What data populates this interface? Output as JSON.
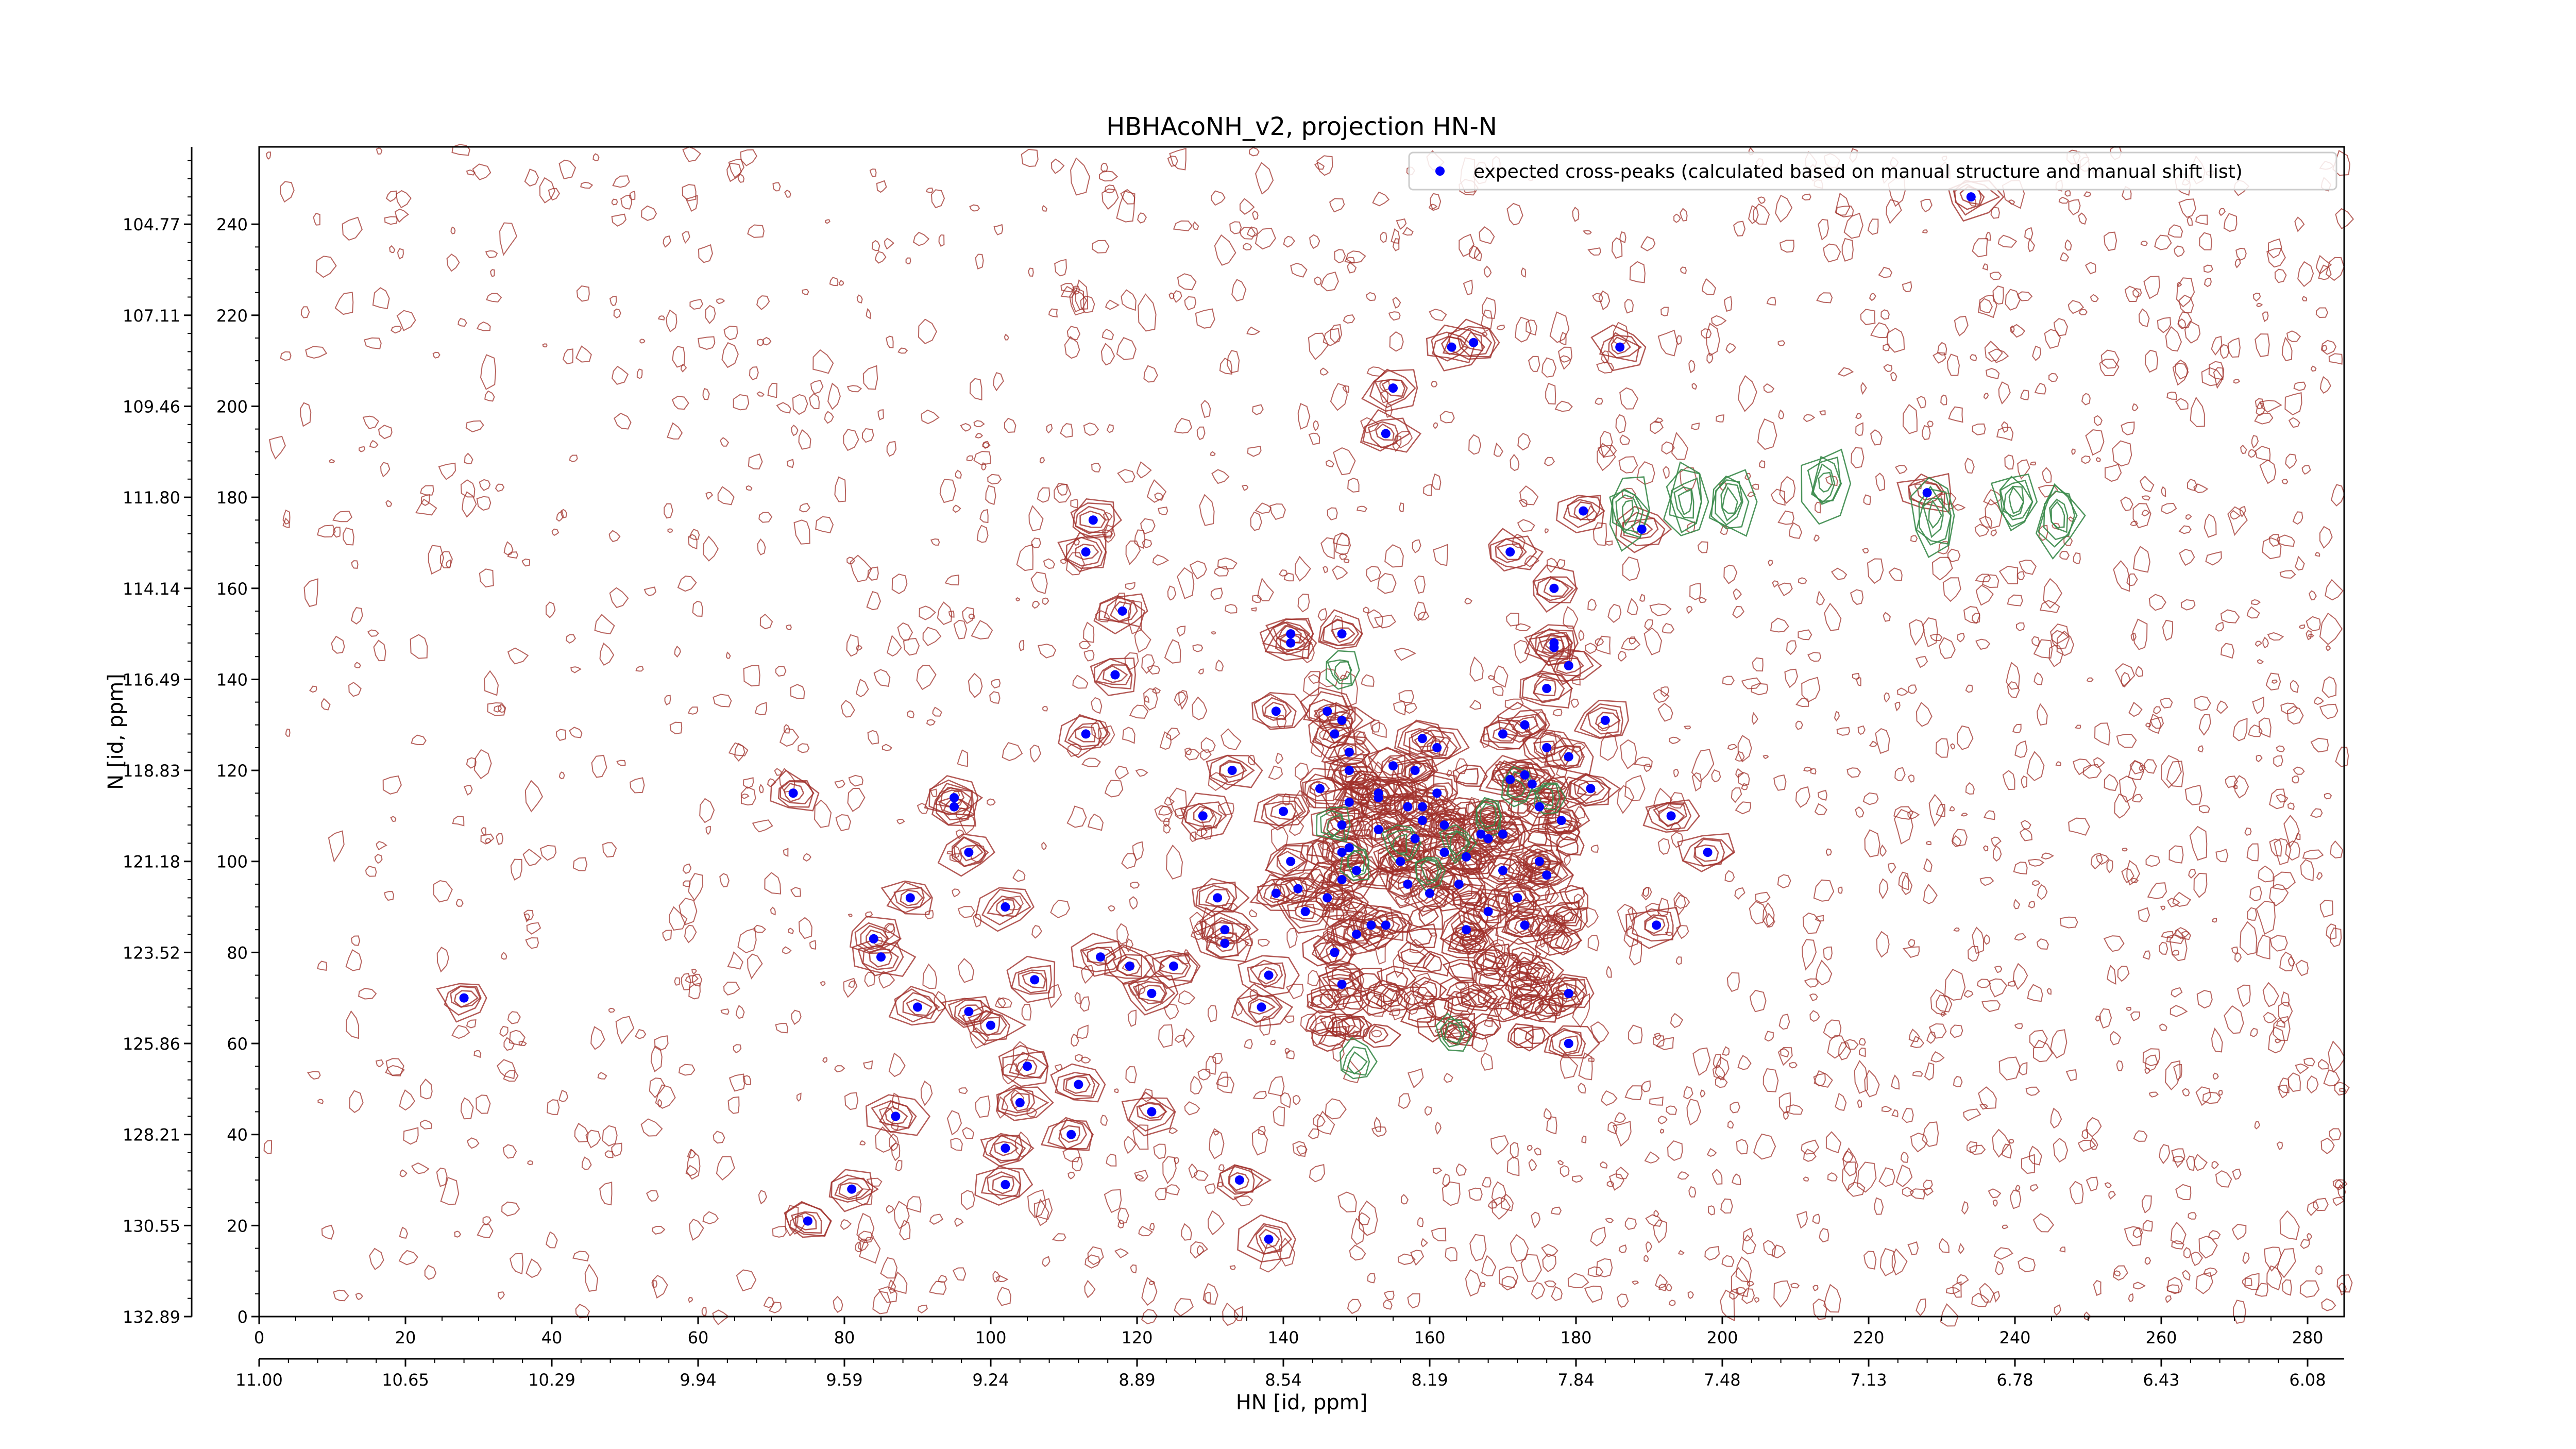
{
  "chart_data": {
    "type": "scatter",
    "title": "HBHAcoNH_v2, projection HN-N",
    "xlabel": "HN [id, ppm]",
    "ylabel": "N [id, ppm]",
    "x_index_ticks": [
      0,
      20,
      40,
      60,
      80,
      100,
      120,
      140,
      160,
      180,
      200,
      220,
      240,
      260,
      280
    ],
    "y_index_ticks": [
      0,
      20,
      40,
      60,
      80,
      100,
      120,
      140,
      160,
      180,
      200,
      220,
      240
    ],
    "x_ppm_ticks": [
      "11.00",
      "10.65",
      "10.29",
      "9.94",
      "9.59",
      "9.24",
      "8.89",
      "8.54",
      "8.19",
      "7.84",
      "7.48",
      "7.13",
      "6.78",
      "6.43",
      "6.08"
    ],
    "y_ppm_ticks": [
      "132.89",
      "130.55",
      "128.21",
      "125.86",
      "123.52",
      "121.18",
      "118.83",
      "116.49",
      "114.14",
      "111.80",
      "109.46",
      "107.11",
      "104.77"
    ],
    "xlim": [
      0,
      285
    ],
    "ylim": [
      0,
      257
    ],
    "legend": {
      "placement": "top-right",
      "label": "expected cross-peaks (calculated based on manual structure and manual shift list)"
    },
    "colors": {
      "marker": "#0000ff",
      "positive_contour": "#a0302a",
      "negative_contour": "#3a8a4a"
    },
    "series": [
      {
        "name": "expected cross-peaks (calculated based on manual structure and manual shift list)",
        "points": [
          [
            28,
            70
          ],
          [
            73,
            115
          ],
          [
            75,
            21
          ],
          [
            81,
            28
          ],
          [
            84,
            83
          ],
          [
            85,
            79
          ],
          [
            87,
            44
          ],
          [
            89,
            92
          ],
          [
            90,
            68
          ],
          [
            95,
            112
          ],
          [
            95,
            114
          ],
          [
            97,
            102
          ],
          [
            97,
            67
          ],
          [
            100,
            64
          ],
          [
            102,
            37
          ],
          [
            102,
            29
          ],
          [
            102,
            90
          ],
          [
            104,
            47
          ],
          [
            105,
            55
          ],
          [
            106,
            74
          ],
          [
            111,
            40
          ],
          [
            112,
            51
          ],
          [
            113,
            128
          ],
          [
            113,
            168
          ],
          [
            114,
            175
          ],
          [
            115,
            79
          ],
          [
            117,
            141
          ],
          [
            118,
            155
          ],
          [
            119,
            77
          ],
          [
            122,
            71
          ],
          [
            122,
            45
          ],
          [
            125,
            77
          ],
          [
            129,
            110
          ],
          [
            131,
            92
          ],
          [
            132,
            85
          ],
          [
            132,
            82
          ],
          [
            133,
            120
          ],
          [
            134,
            30
          ],
          [
            137,
            68
          ],
          [
            138,
            17
          ],
          [
            138,
            75
          ],
          [
            139,
            93
          ],
          [
            139,
            133
          ],
          [
            140,
            111
          ],
          [
            141,
            100
          ],
          [
            141,
            148
          ],
          [
            141,
            150
          ],
          [
            142,
            94
          ],
          [
            143,
            89
          ],
          [
            145,
            116
          ],
          [
            146,
            92
          ],
          [
            146,
            133
          ],
          [
            147,
            128
          ],
          [
            147,
            80
          ],
          [
            148,
            73
          ],
          [
            148,
            96
          ],
          [
            148,
            102
          ],
          [
            148,
            108
          ],
          [
            148,
            150
          ],
          [
            148,
            131
          ],
          [
            149,
            103
          ],
          [
            149,
            113
          ],
          [
            149,
            124
          ],
          [
            149,
            120
          ],
          [
            150,
            84
          ],
          [
            150,
            98
          ],
          [
            152,
            86
          ],
          [
            153,
            115
          ],
          [
            153,
            107
          ],
          [
            153,
            114
          ],
          [
            154,
            194
          ],
          [
            154,
            86
          ],
          [
            155,
            121
          ],
          [
            155,
            204
          ],
          [
            156,
            100
          ],
          [
            157,
            112
          ],
          [
            157,
            95
          ],
          [
            158,
            120
          ],
          [
            158,
            105
          ],
          [
            159,
            112
          ],
          [
            159,
            127
          ],
          [
            159,
            109
          ],
          [
            160,
            93
          ],
          [
            161,
            125
          ],
          [
            161,
            115
          ],
          [
            162,
            102
          ],
          [
            162,
            108
          ],
          [
            163,
            213
          ],
          [
            164,
            95
          ],
          [
            165,
            101
          ],
          [
            165,
            85
          ],
          [
            166,
            214
          ],
          [
            167,
            106
          ],
          [
            168,
            89
          ],
          [
            168,
            105
          ],
          [
            170,
            128
          ],
          [
            170,
            106
          ],
          [
            170,
            98
          ],
          [
            171,
            168
          ],
          [
            171,
            118
          ],
          [
            172,
            92
          ],
          [
            173,
            130
          ],
          [
            173,
            86
          ],
          [
            173,
            119
          ],
          [
            174,
            117
          ],
          [
            175,
            112
          ],
          [
            175,
            100
          ],
          [
            176,
            125
          ],
          [
            176,
            138
          ],
          [
            176,
            97
          ],
          [
            177,
            160
          ],
          [
            177,
            148
          ],
          [
            177,
            147
          ],
          [
            178,
            109
          ],
          [
            179,
            123
          ],
          [
            179,
            60
          ],
          [
            179,
            71
          ],
          [
            179,
            143
          ],
          [
            181,
            177
          ],
          [
            182,
            116
          ],
          [
            184,
            131
          ],
          [
            186,
            213
          ],
          [
            189,
            173
          ],
          [
            191,
            86
          ],
          [
            193,
            110
          ],
          [
            198,
            102
          ],
          [
            228,
            181
          ],
          [
            234,
            246
          ]
        ]
      }
    ]
  }
}
